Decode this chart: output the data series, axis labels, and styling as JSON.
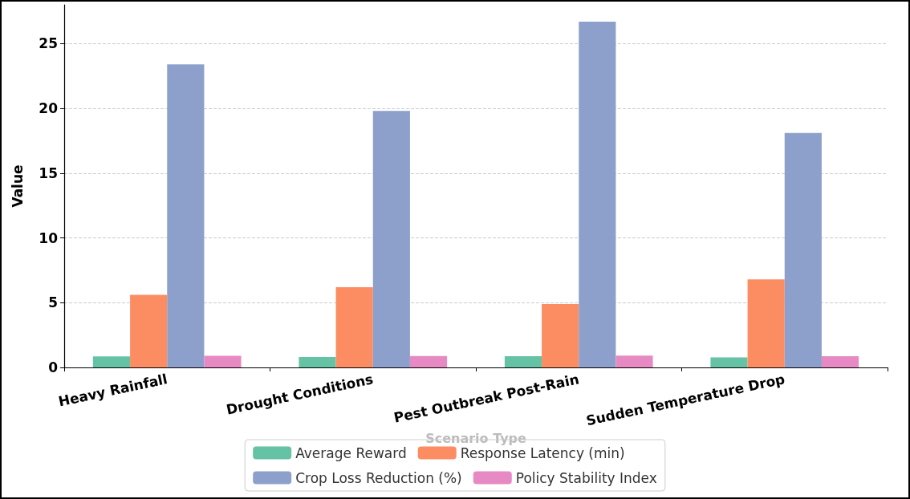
{
  "chart_data": {
    "type": "bar",
    "xlabel": "Scenario Type",
    "ylabel": "Value",
    "categories": [
      "Heavy Rainfall",
      "Drought Conditions",
      "Pest Outbreak Post-Rain",
      "Sudden Temperature Drop"
    ],
    "series": [
      {
        "name": "Average Reward",
        "color": "#66c2a5",
        "values": [
          0.85,
          0.8,
          0.87,
          0.78
        ]
      },
      {
        "name": "Response Latency (min)",
        "color": "#fc8d62",
        "values": [
          5.6,
          6.2,
          4.9,
          6.8
        ]
      },
      {
        "name": "Crop Loss Reduction (%)",
        "color": "#8da0cb",
        "values": [
          23.4,
          19.8,
          26.7,
          18.1
        ]
      },
      {
        "name": "Policy Stability Index",
        "color": "#e78ac3",
        "values": [
          0.9,
          0.88,
          0.91,
          0.86
        ]
      }
    ],
    "ylim": [
      0,
      28
    ],
    "yticks": [
      0,
      5,
      10,
      15,
      20,
      25
    ],
    "grid": "y",
    "legend": "bottom"
  }
}
